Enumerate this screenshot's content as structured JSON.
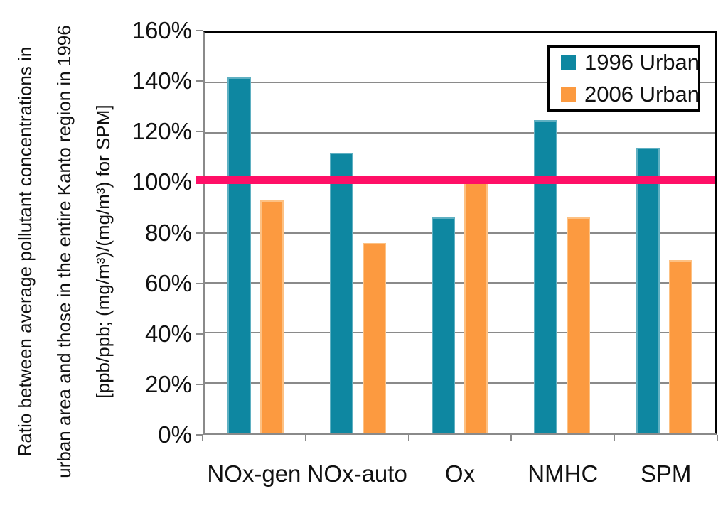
{
  "chart_data": {
    "type": "bar",
    "title": "",
    "categories": [
      "NOx-gen",
      "NOx-auto",
      "Ox",
      "NMHC",
      "SPM"
    ],
    "series": [
      {
        "name": "1996 Urban",
        "color": "#0e87a1",
        "edge_color": "#5fb0c2",
        "values": [
          142,
          112,
          86,
          125,
          114
        ]
      },
      {
        "name": "2006 Urban",
        "color": "#fc9a40",
        "edge_color": "#fdc183",
        "values": [
          93,
          76,
          100,
          86,
          69
        ]
      }
    ],
    "unit": "%",
    "ylim": [
      0,
      160
    ],
    "ytick_step": 20,
    "ytick_labels": [
      "160%",
      "140%",
      "120%",
      "100%",
      "80%",
      "60%",
      "40%",
      "20%",
      "0%"
    ],
    "ylabel_lines": [
      "Ratio between average pollutant concentrations in",
      "urban area and those in the entire Kanto region in 1996",
      "[ppb/ppb; (mg/m³)/(mg/m³) for SPM]"
    ],
    "xlabel": "",
    "reference_line": {
      "value": 101,
      "color": "#ff0f67"
    },
    "grid": true,
    "legend_position": "top-right",
    "colors": {
      "gridline": "#8a8a8a",
      "axis_line": "#8a8a8a",
      "plot_border": "#000000",
      "background": "#ffffff",
      "text": "#111111"
    }
  }
}
